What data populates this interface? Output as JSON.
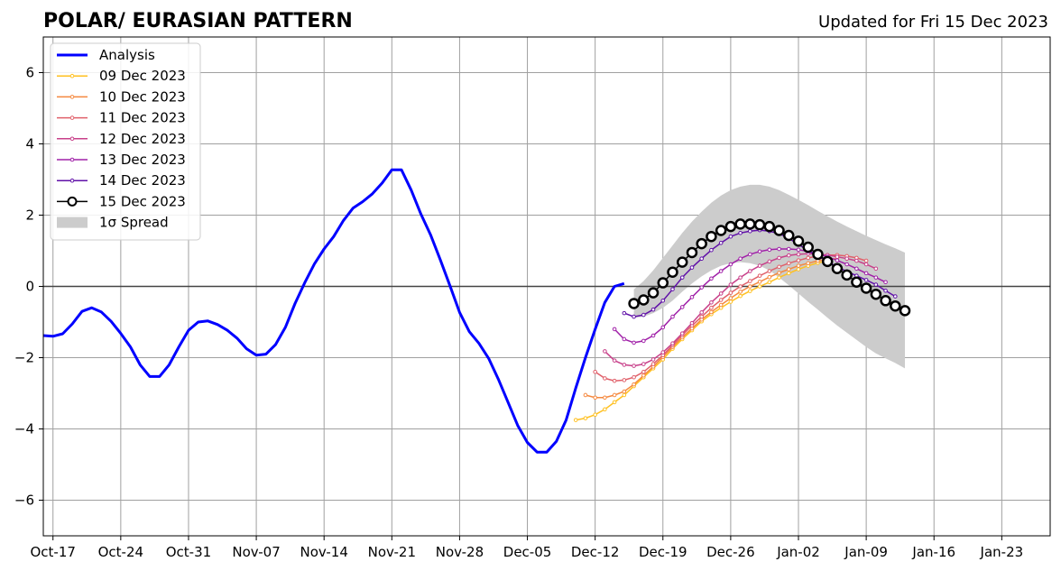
{
  "title_left": "POLAR/ EURASIAN  PATTERN",
  "title_right": "Updated for Fri 15 Dec 2023",
  "chart_data": {
    "type": "line",
    "x_axis": {
      "type": "date",
      "range": [
        "2023-10-16",
        "2024-01-28"
      ],
      "ticks": [
        "2023-10-17",
        "2023-10-24",
        "2023-10-31",
        "2023-11-07",
        "2023-11-14",
        "2023-11-21",
        "2023-11-28",
        "2023-12-05",
        "2023-12-12",
        "2023-12-19",
        "2023-12-26",
        "2024-01-02",
        "2024-01-09",
        "2024-01-16",
        "2024-01-23"
      ],
      "tick_labels": [
        "Oct-17",
        "Oct-24",
        "Oct-31",
        "Nov-07",
        "Nov-14",
        "Nov-21",
        "Nov-28",
        "Dec-05",
        "Dec-12",
        "Dec-19",
        "Dec-26",
        "Jan-02",
        "Jan-09",
        "Jan-16",
        "Jan-23"
      ]
    },
    "y_axis": {
      "range": [
        -7,
        7
      ],
      "ticks": [
        -6,
        -4,
        -2,
        0,
        2,
        4,
        6
      ],
      "tick_labels": [
        "−6",
        "−4",
        "−2",
        "0",
        "2",
        "4",
        "6"
      ]
    },
    "grid": true,
    "zero_line": true,
    "legend_position": "upper-left",
    "series": [
      {
        "name": "Analysis",
        "color": "#0000ff",
        "x": [
          "2023-10-16",
          "2023-10-17",
          "2023-10-18",
          "2023-10-19",
          "2023-10-20",
          "2023-10-21",
          "2023-10-22",
          "2023-10-23",
          "2023-10-24",
          "2023-10-25",
          "2023-10-26",
          "2023-10-27",
          "2023-10-28",
          "2023-10-29",
          "2023-10-30",
          "2023-10-31",
          "2023-11-01",
          "2023-11-02",
          "2023-11-03",
          "2023-11-04",
          "2023-11-05",
          "2023-11-06",
          "2023-11-07",
          "2023-11-08",
          "2023-11-09",
          "2023-11-10",
          "2023-11-11",
          "2023-11-12",
          "2023-11-13",
          "2023-11-14",
          "2023-11-15",
          "2023-11-16",
          "2023-11-17",
          "2023-11-18",
          "2023-11-19",
          "2023-11-20",
          "2023-11-21",
          "2023-11-22",
          "2023-11-23",
          "2023-11-24",
          "2023-11-25",
          "2023-11-26",
          "2023-11-27",
          "2023-11-28",
          "2023-11-29",
          "2023-11-30",
          "2023-12-01",
          "2023-12-02",
          "2023-12-03",
          "2023-12-04",
          "2023-12-05",
          "2023-12-06",
          "2023-12-07",
          "2023-12-08",
          "2023-12-09",
          "2023-12-10",
          "2023-12-11",
          "2023-12-12",
          "2023-12-13",
          "2023-12-14",
          "2023-12-15"
        ],
        "y": [
          -1.38,
          -1.4,
          -1.33,
          -1.05,
          -0.7,
          -0.6,
          -0.72,
          -0.98,
          -1.32,
          -1.7,
          -2.2,
          -2.53,
          -2.53,
          -2.2,
          -1.7,
          -1.23,
          -1.0,
          -0.97,
          -1.07,
          -1.23,
          -1.45,
          -1.75,
          -1.93,
          -1.9,
          -1.63,
          -1.15,
          -0.48,
          0.1,
          0.63,
          1.05,
          1.4,
          1.85,
          2.2,
          2.38,
          2.6,
          2.9,
          3.27,
          3.27,
          2.7,
          2.03,
          1.45,
          0.75,
          0.02,
          -0.73,
          -1.27,
          -1.6,
          -2.02,
          -2.6,
          -3.25,
          -3.9,
          -4.38,
          -4.65,
          -4.65,
          -4.35,
          -3.75,
          -2.85,
          -2.0,
          -1.2,
          -0.45,
          0.0,
          0.08
        ]
      },
      {
        "name": "09 Dec 2023",
        "color": "#ffc020",
        "x": [
          "2023-12-10",
          "2023-12-11",
          "2023-12-12",
          "2023-12-13",
          "2023-12-14",
          "2023-12-15",
          "2023-12-16",
          "2023-12-17",
          "2023-12-18",
          "2023-12-19",
          "2023-12-20",
          "2023-12-21",
          "2023-12-22",
          "2023-12-23",
          "2023-12-24",
          "2023-12-25",
          "2023-12-26",
          "2023-12-27",
          "2023-12-28",
          "2023-12-29",
          "2023-12-30",
          "2023-12-31",
          "2024-01-01",
          "2024-01-02",
          "2024-01-03",
          "2024-01-04",
          "2024-01-05"
        ],
        "y": [
          -3.75,
          -3.7,
          -3.6,
          -3.45,
          -3.25,
          -3.05,
          -2.8,
          -2.55,
          -2.3,
          -2.05,
          -1.75,
          -1.48,
          -1.23,
          -0.98,
          -0.78,
          -0.6,
          -0.43,
          -0.27,
          -0.13,
          0.0,
          0.12,
          0.25,
          0.37,
          0.48,
          0.58,
          0.66,
          0.72
        ]
      },
      {
        "name": "10 Dec 2023",
        "color": "#f5893f",
        "x": [
          "2023-12-11",
          "2023-12-12",
          "2023-12-13",
          "2023-12-14",
          "2023-12-15",
          "2023-12-16",
          "2023-12-17",
          "2023-12-18",
          "2023-12-19",
          "2023-12-20",
          "2023-12-21",
          "2023-12-22",
          "2023-12-23",
          "2023-12-24",
          "2023-12-25",
          "2023-12-26",
          "2023-12-27",
          "2023-12-28",
          "2023-12-29",
          "2023-12-30",
          "2023-12-31",
          "2024-01-01",
          "2024-01-02",
          "2024-01-03",
          "2024-01-04",
          "2024-01-05",
          "2024-01-06"
        ],
        "y": [
          -3.05,
          -3.12,
          -3.12,
          -3.05,
          -2.95,
          -2.75,
          -2.5,
          -2.25,
          -1.98,
          -1.7,
          -1.43,
          -1.18,
          -0.93,
          -0.72,
          -0.52,
          -0.33,
          -0.15,
          0.0,
          0.13,
          0.26,
          0.38,
          0.48,
          0.58,
          0.65,
          0.72,
          0.76,
          0.78
        ]
      },
      {
        "name": "11 Dec 2023",
        "color": "#e0606a",
        "x": [
          "2023-12-12",
          "2023-12-13",
          "2023-12-14",
          "2023-12-15",
          "2023-12-16",
          "2023-12-17",
          "2023-12-18",
          "2023-12-19",
          "2023-12-20",
          "2023-12-21",
          "2023-12-22",
          "2023-12-23",
          "2023-12-24",
          "2023-12-25",
          "2023-12-26",
          "2023-12-27",
          "2023-12-28",
          "2023-12-29",
          "2023-12-30",
          "2023-12-31",
          "2024-01-01",
          "2024-01-02",
          "2024-01-03",
          "2024-01-04",
          "2024-01-05",
          "2024-01-06",
          "2024-01-07",
          "2024-01-08",
          "2024-01-09"
        ],
        "y": [
          -2.4,
          -2.58,
          -2.65,
          -2.63,
          -2.55,
          -2.4,
          -2.18,
          -1.93,
          -1.65,
          -1.37,
          -1.1,
          -0.85,
          -0.6,
          -0.38,
          -0.18,
          0.0,
          0.15,
          0.3,
          0.43,
          0.55,
          0.65,
          0.73,
          0.8,
          0.85,
          0.88,
          0.88,
          0.85,
          0.8,
          0.72
        ]
      },
      {
        "name": "12 Dec 2023",
        "color": "#c8408a",
        "x": [
          "2023-12-13",
          "2023-12-14",
          "2023-12-15",
          "2023-12-16",
          "2023-12-17",
          "2023-12-18",
          "2023-12-19",
          "2023-12-20",
          "2023-12-21",
          "2023-12-22",
          "2023-12-23",
          "2023-12-24",
          "2023-12-25",
          "2023-12-26",
          "2023-12-27",
          "2023-12-28",
          "2023-12-29",
          "2023-12-30",
          "2023-12-31",
          "2024-01-01",
          "2024-01-02",
          "2024-01-03",
          "2024-01-04",
          "2024-01-05",
          "2024-01-06",
          "2024-01-07",
          "2024-01-08",
          "2024-01-09",
          "2024-01-10"
        ],
        "y": [
          -1.82,
          -2.08,
          -2.2,
          -2.23,
          -2.18,
          -2.05,
          -1.85,
          -1.6,
          -1.32,
          -1.03,
          -0.73,
          -0.45,
          -0.2,
          0.05,
          0.25,
          0.43,
          0.58,
          0.7,
          0.8,
          0.87,
          0.9,
          0.92,
          0.9,
          0.88,
          0.83,
          0.78,
          0.72,
          0.62,
          0.5
        ]
      },
      {
        "name": "13 Dec 2023",
        "color": "#a020a8",
        "x": [
          "2023-12-14",
          "2023-12-15",
          "2023-12-16",
          "2023-12-17",
          "2023-12-18",
          "2023-12-19",
          "2023-12-20",
          "2023-12-21",
          "2023-12-22",
          "2023-12-23",
          "2023-12-24",
          "2023-12-25",
          "2023-12-26",
          "2023-12-27",
          "2023-12-28",
          "2023-12-29",
          "2023-12-30",
          "2023-12-31",
          "2024-01-01",
          "2024-01-02",
          "2024-01-03",
          "2024-01-04",
          "2024-01-05",
          "2024-01-06",
          "2024-01-07",
          "2024-01-08",
          "2024-01-09",
          "2024-01-10",
          "2024-01-11"
        ],
        "y": [
          -1.2,
          -1.48,
          -1.58,
          -1.53,
          -1.38,
          -1.15,
          -0.85,
          -0.58,
          -0.3,
          -0.03,
          0.22,
          0.43,
          0.62,
          0.78,
          0.9,
          0.98,
          1.03,
          1.05,
          1.05,
          1.03,
          0.98,
          0.92,
          0.83,
          0.73,
          0.62,
          0.5,
          0.37,
          0.25,
          0.12
        ]
      },
      {
        "name": "14 Dec 2023",
        "color": "#6010a8",
        "x": [
          "2023-12-15",
          "2023-12-16",
          "2023-12-17",
          "2023-12-18",
          "2023-12-19",
          "2023-12-20",
          "2023-12-21",
          "2023-12-22",
          "2023-12-23",
          "2023-12-24",
          "2023-12-25",
          "2023-12-26",
          "2023-12-27",
          "2023-12-28",
          "2023-12-29",
          "2023-12-30",
          "2023-12-31",
          "2024-01-01",
          "2024-01-02",
          "2024-01-03",
          "2024-01-04",
          "2024-01-05",
          "2024-01-06",
          "2024-01-07",
          "2024-01-08",
          "2024-01-09",
          "2024-01-10",
          "2024-01-11",
          "2024-01-12"
        ],
        "y": [
          -0.75,
          -0.85,
          -0.8,
          -0.65,
          -0.4,
          -0.08,
          0.25,
          0.53,
          0.78,
          1.02,
          1.22,
          1.4,
          1.5,
          1.55,
          1.58,
          1.55,
          1.48,
          1.35,
          1.18,
          1.0,
          0.85,
          0.7,
          0.55,
          0.42,
          0.3,
          0.18,
          0.05,
          -0.12,
          -0.28
        ]
      },
      {
        "name": "15 Dec 2023",
        "color": "#000000",
        "marker": "open-circle",
        "x": [
          "2023-12-16",
          "2023-12-17",
          "2023-12-18",
          "2023-12-19",
          "2023-12-20",
          "2023-12-21",
          "2023-12-22",
          "2023-12-23",
          "2023-12-24",
          "2023-12-25",
          "2023-12-26",
          "2023-12-27",
          "2023-12-28",
          "2023-12-29",
          "2023-12-30",
          "2023-12-31",
          "2024-01-01",
          "2024-01-02",
          "2024-01-03",
          "2024-01-04",
          "2024-01-05",
          "2024-01-06",
          "2024-01-07",
          "2024-01-08",
          "2024-01-09",
          "2024-01-10",
          "2024-01-11",
          "2024-01-12",
          "2024-01-13"
        ],
        "y": [
          -0.48,
          -0.38,
          -0.18,
          0.1,
          0.4,
          0.68,
          0.95,
          1.2,
          1.4,
          1.57,
          1.68,
          1.75,
          1.75,
          1.73,
          1.68,
          1.57,
          1.43,
          1.27,
          1.1,
          0.9,
          0.7,
          0.5,
          0.32,
          0.12,
          -0.05,
          -0.22,
          -0.4,
          -0.55,
          -0.68
        ]
      }
    ],
    "spread": {
      "name": "1σ Spread",
      "color": "#cccccc",
      "x": [
        "2023-12-16",
        "2023-12-17",
        "2023-12-18",
        "2023-12-19",
        "2023-12-20",
        "2023-12-21",
        "2023-12-22",
        "2023-12-23",
        "2023-12-24",
        "2023-12-25",
        "2023-12-26",
        "2023-12-27",
        "2023-12-28",
        "2023-12-29",
        "2023-12-30",
        "2023-12-31",
        "2024-01-01",
        "2024-01-02",
        "2024-01-03",
        "2024-01-04",
        "2024-01-05",
        "2024-01-06",
        "2024-01-07",
        "2024-01-08",
        "2024-01-09",
        "2024-01-10",
        "2024-01-11",
        "2024-01-12",
        "2024-01-13"
      ],
      "upper": [
        -0.08,
        0.15,
        0.45,
        0.8,
        1.15,
        1.5,
        1.82,
        2.1,
        2.35,
        2.55,
        2.7,
        2.8,
        2.85,
        2.85,
        2.8,
        2.7,
        2.57,
        2.43,
        2.28,
        2.12,
        1.97,
        1.82,
        1.68,
        1.55,
        1.42,
        1.3,
        1.18,
        1.07,
        0.95
      ],
      "lower": [
        -0.88,
        -0.85,
        -0.75,
        -0.6,
        -0.4,
        -0.15,
        0.08,
        0.28,
        0.45,
        0.58,
        0.65,
        0.68,
        0.65,
        0.58,
        0.45,
        0.25,
        0.03,
        -0.2,
        -0.43,
        -0.65,
        -0.88,
        -1.1,
        -1.3,
        -1.5,
        -1.7,
        -1.88,
        -2.02,
        -2.15,
        -2.3
      ]
    }
  }
}
